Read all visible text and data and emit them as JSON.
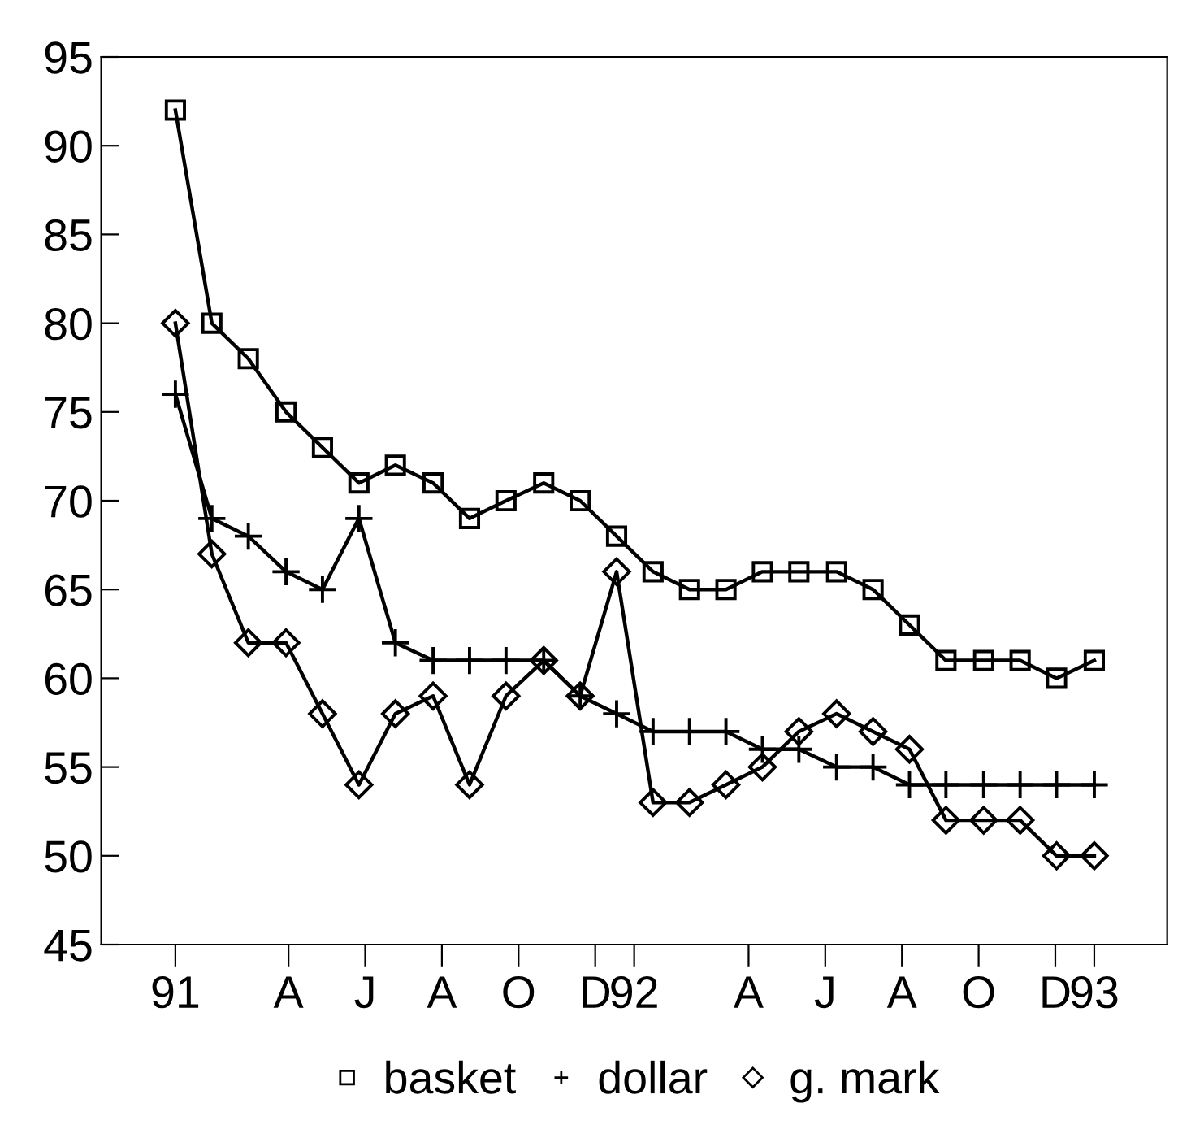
{
  "chart_data": {
    "type": "line",
    "x": [
      "1991-01-01",
      "1991-01-30",
      "1991-02-28",
      "1991-03-30",
      "1991-04-28",
      "1991-05-27",
      "1991-06-25",
      "1991-07-25",
      "1991-08-23",
      "1991-09-21",
      "1991-10-21",
      "1991-11-19",
      "1991-12-18",
      "1992-01-16",
      "1992-02-14",
      "1992-03-14",
      "1992-04-12",
      "1992-05-11",
      "1992-06-10",
      "1992-07-09",
      "1992-08-07",
      "1992-09-05",
      "1992-10-05",
      "1992-11-03",
      "1992-12-02",
      "1993-01-01"
    ],
    "xlim": [
      "1990-11-03",
      "1993-02-28"
    ],
    "xticks": [
      {
        "value": "1991-01",
        "label": "91"
      },
      {
        "value": "1991-04",
        "label": "A"
      },
      {
        "value": "1991-06",
        "label": "J"
      },
      {
        "value": "1991-08",
        "label": "A"
      },
      {
        "value": "1991-10",
        "label": "O"
      },
      {
        "value": "1991-12",
        "label": "D"
      },
      {
        "value": "1992-01",
        "label": "92"
      },
      {
        "value": "1992-04",
        "label": "A"
      },
      {
        "value": "1992-06",
        "label": "J"
      },
      {
        "value": "1992-08",
        "label": "A"
      },
      {
        "value": "1992-10",
        "label": "O"
      },
      {
        "value": "1992-12",
        "label": "D"
      },
      {
        "value": "1993-01",
        "label": "93"
      }
    ],
    "ylim": [
      45,
      95
    ],
    "yticks": [
      45,
      50,
      55,
      60,
      65,
      70,
      75,
      80,
      85,
      90,
      95
    ],
    "grid": false,
    "legend": "bottom",
    "series": [
      {
        "name": "basket",
        "color": "#000000",
        "marker": "square",
        "values": [
          92,
          80,
          78,
          75,
          73,
          71,
          72,
          71,
          69,
          70,
          71,
          70,
          68,
          66,
          65,
          65,
          66,
          66,
          66,
          65,
          63,
          61,
          61,
          61,
          60,
          61
        ]
      },
      {
        "name": "dollar",
        "color": "#000000",
        "marker": "cross",
        "values": [
          76,
          69,
          68,
          66,
          65,
          69,
          62,
          61,
          61,
          61,
          61,
          59,
          58,
          57,
          57,
          57,
          56,
          56,
          55,
          55,
          54,
          54,
          54,
          54,
          54,
          54
        ]
      },
      {
        "name": "g. mark",
        "color": "#000000",
        "marker": "diamond",
        "values": [
          80,
          67,
          62,
          62,
          58,
          54,
          58,
          59,
          54,
          59,
          61,
          59,
          66,
          53,
          53,
          54,
          55,
          57,
          58,
          57,
          56,
          52,
          52,
          52,
          50,
          50
        ]
      }
    ]
  }
}
